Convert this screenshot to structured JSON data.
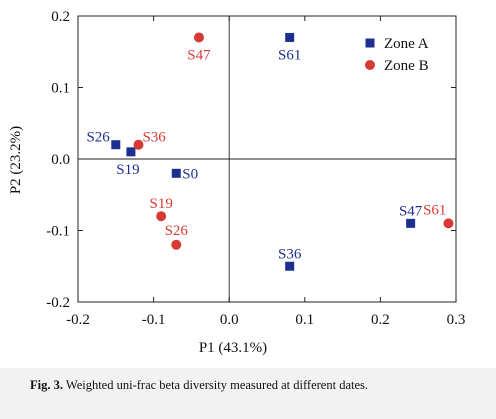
{
  "chart_data": {
    "type": "scatter",
    "xlabel": "P1 (43.1%)",
    "ylabel": "P2 (23.2%)",
    "xlim": [
      -0.2,
      0.3
    ],
    "ylim": [
      -0.2,
      0.2
    ],
    "xticks": [
      "-0.2",
      "-0.1",
      "0.0",
      "0.1",
      "0.2",
      "0.3"
    ],
    "yticks": [
      "0.2",
      "0.1",
      "0.0",
      "-0.1",
      "-0.2"
    ],
    "legend_position": "top-right",
    "series": [
      {
        "name": "Zone A",
        "marker": "square",
        "color": "#1f2f8f",
        "points": [
          {
            "label": "S61",
            "x": 0.08,
            "y": 0.17
          },
          {
            "label": "S26",
            "x": -0.15,
            "y": 0.02
          },
          {
            "label": "S19",
            "x": -0.13,
            "y": 0.01
          },
          {
            "label": "S0",
            "x": -0.07,
            "y": -0.02
          },
          {
            "label": "S47",
            "x": 0.24,
            "y": -0.09
          },
          {
            "label": "S36",
            "x": 0.08,
            "y": -0.15
          }
        ]
      },
      {
        "name": "Zone B",
        "marker": "circle",
        "color": "#d63a34",
        "points": [
          {
            "label": "S47",
            "x": -0.04,
            "y": 0.17
          },
          {
            "label": "S36",
            "x": -0.12,
            "y": 0.02
          },
          {
            "label": "S19",
            "x": -0.09,
            "y": -0.08
          },
          {
            "label": "S26",
            "x": -0.07,
            "y": -0.12
          },
          {
            "label": "S61",
            "x": 0.29,
            "y": -0.09
          }
        ]
      }
    ]
  },
  "caption": {
    "label": "Fig. 3.",
    "text": "Weighted uni-frac beta diversity measured at different dates."
  }
}
